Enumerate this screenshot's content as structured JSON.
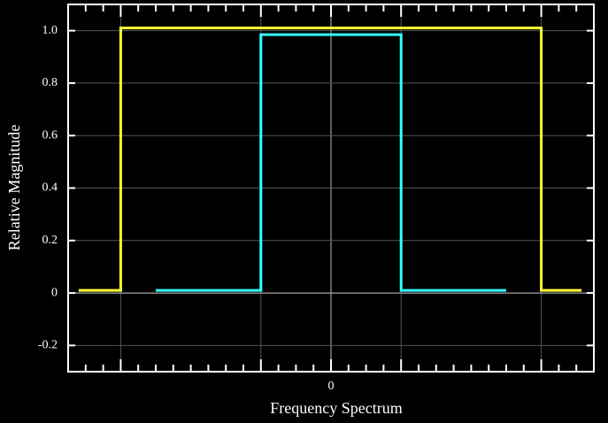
{
  "chart_data": {
    "type": "line",
    "x_label": "Frequency Spectrum",
    "y_label": "Relative Magnitude",
    "xlim": [
      -15,
      15
    ],
    "ylim": [
      -0.3,
      1.1
    ],
    "xticks": [
      0
    ],
    "xminor_ticks": [
      -14,
      -13,
      -12,
      -11,
      -10,
      -9,
      -8,
      -7,
      -6,
      -5,
      -4,
      -3,
      -2,
      -1,
      0,
      1,
      2,
      3,
      4,
      5,
      6,
      7,
      8,
      9,
      10,
      11,
      12,
      13,
      14
    ],
    "xgrid": [
      -12,
      -4,
      0,
      4,
      12
    ],
    "yticks": [
      -0.2,
      0,
      0.2,
      0.4,
      0.6,
      0.8,
      {
        "value": 1,
        "label": "1.0"
      }
    ],
    "grid": true,
    "series": [
      {
        "color": "#ffff33",
        "x": [
          -14.4,
          -12,
          -12,
          12,
          12,
          14.3
        ],
        "values": [
          0.01,
          0.01,
          1.01,
          1.01,
          0.01,
          0.01
        ]
      },
      {
        "color": "#33ffff",
        "x": [
          -10,
          -4,
          -4,
          4,
          4,
          10
        ],
        "values": [
          0.01,
          0.01,
          0.985,
          0.985,
          0.01,
          0.01
        ]
      }
    ]
  }
}
